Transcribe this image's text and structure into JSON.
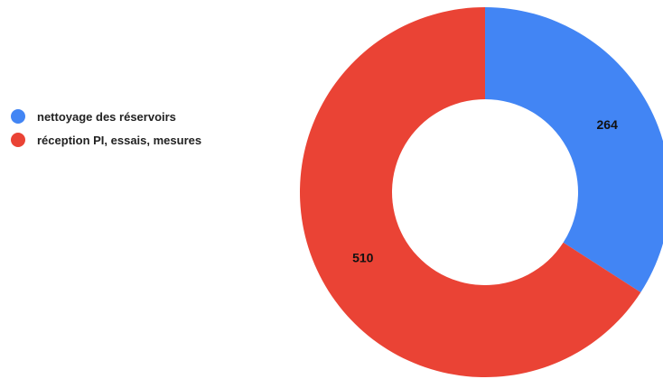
{
  "chart_data": {
    "type": "pie",
    "donut": true,
    "legend_position": "left",
    "categories": [
      "nettoyage des réservoirs",
      "réception PI, essais, mesures"
    ],
    "values": [
      264,
      510
    ],
    "data_labels": [
      "264",
      "510"
    ],
    "colors": [
      "#4285F4",
      "#EA4335"
    ]
  }
}
